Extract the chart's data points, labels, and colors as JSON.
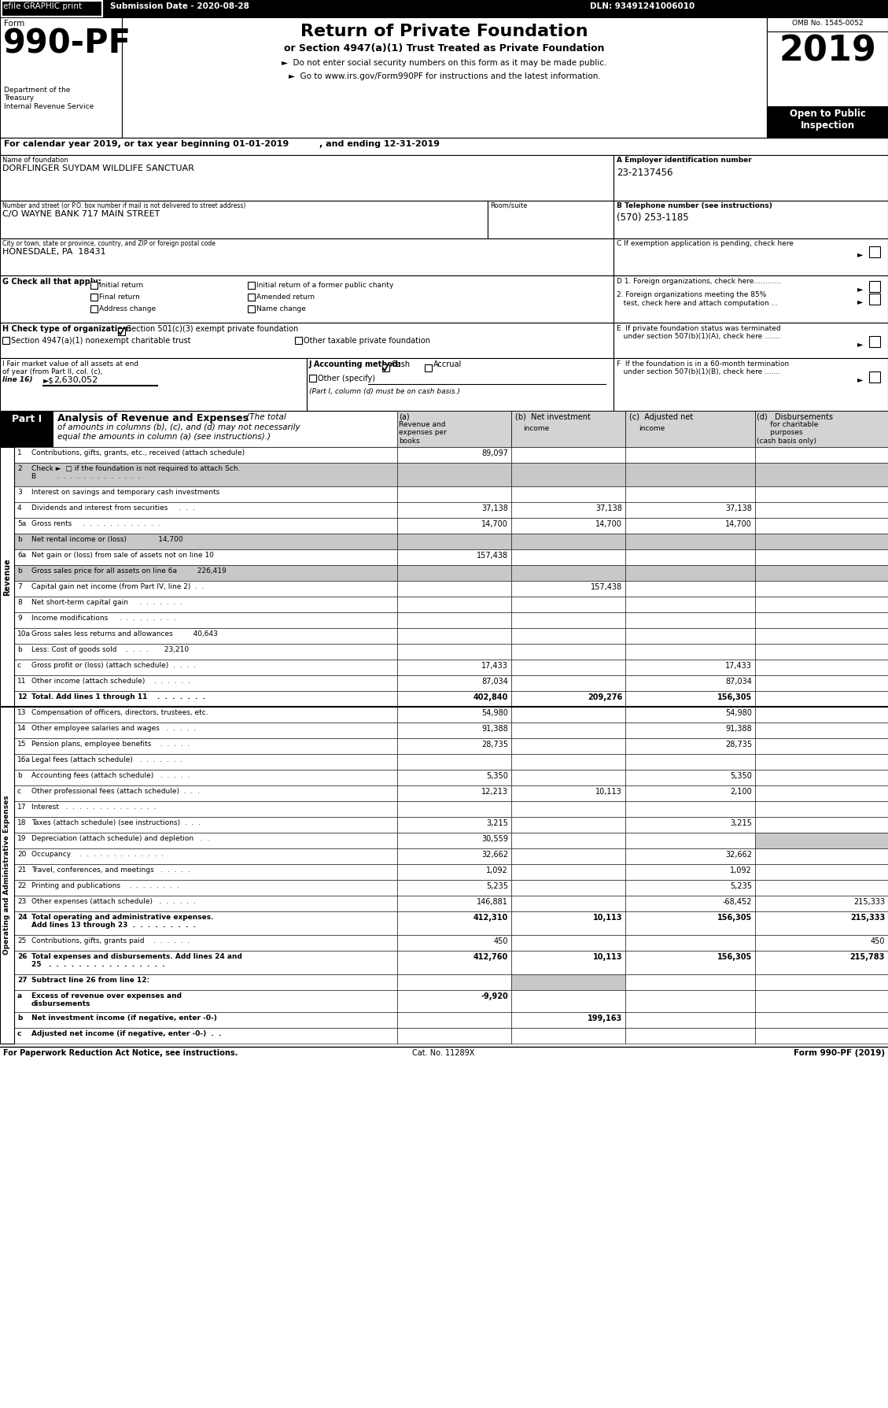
{
  "rows": [
    {
      "num": "1",
      "label": "Contributions, gifts, grants, etc., received (attach schedule)",
      "a": "89,097",
      "b": "",
      "c": "",
      "d": "",
      "shaded_b": false,
      "shaded_c": false,
      "shaded_d": false
    },
    {
      "num": "2",
      "label": "Check ►  □ if the foundation is not required to attach Sch.\nB         .  .  .  .  .  .  .  .  .  .  .  .  .",
      "a": "",
      "b": "",
      "c": "",
      "d": "",
      "shaded_b": true,
      "shaded_c": true,
      "shaded_d": true
    },
    {
      "num": "3",
      "label": "Interest on savings and temporary cash investments",
      "a": "",
      "b": "",
      "c": "",
      "d": "",
      "shaded_b": false,
      "shaded_c": false,
      "shaded_d": false
    },
    {
      "num": "4",
      "label": "Dividends and interest from securities     .  .  .",
      "a": "37,138",
      "b": "37,138",
      "c": "37,138",
      "d": "",
      "shaded_b": false,
      "shaded_c": false,
      "shaded_d": false
    },
    {
      "num": "5a",
      "label": "Gross rents     .  .  .  .  .  .  .  .  .  .  .  .",
      "a": "14,700",
      "b": "14,700",
      "c": "14,700",
      "d": "",
      "shaded_b": false,
      "shaded_c": false,
      "shaded_d": false
    },
    {
      "num": "b",
      "label": "Net rental income or (loss)              14,700",
      "a": "",
      "b": "",
      "c": "",
      "d": "",
      "shaded_b": true,
      "shaded_c": true,
      "shaded_d": true
    },
    {
      "num": "6a",
      "label": "Net gain or (loss) from sale of assets not on line 10",
      "a": "157,438",
      "b": "",
      "c": "",
      "d": "",
      "shaded_b": false,
      "shaded_c": false,
      "shaded_d": false
    },
    {
      "num": "b",
      "label": "Gross sales price for all assets on line 6a         226,419",
      "a": "",
      "b": "",
      "c": "",
      "d": "",
      "shaded_b": true,
      "shaded_c": true,
      "shaded_d": true
    },
    {
      "num": "7",
      "label": "Capital gain net income (from Part IV, line 2)  .  .",
      "a": "",
      "b": "157,438",
      "c": "",
      "d": "",
      "shaded_b": false,
      "shaded_c": false,
      "shaded_d": false
    },
    {
      "num": "8",
      "label": "Net short-term capital gain     .  .  .  .  .  .  .",
      "a": "",
      "b": "",
      "c": "",
      "d": "",
      "shaded_b": false,
      "shaded_c": false,
      "shaded_d": false
    },
    {
      "num": "9",
      "label": "Income modifications     .  .  .  .  .  .  .  .  .",
      "a": "",
      "b": "",
      "c": "",
      "d": "",
      "shaded_b": false,
      "shaded_c": false,
      "shaded_d": false
    },
    {
      "num": "10a",
      "label": "Gross sales less returns and allowances         40,643",
      "a": "",
      "b": "",
      "c": "",
      "d": "",
      "shaded_b": false,
      "shaded_c": false,
      "shaded_d": false
    },
    {
      "num": "b",
      "label": "Less: Cost of goods sold    .  .  .  .       23,210",
      "a": "",
      "b": "",
      "c": "",
      "d": "",
      "shaded_b": false,
      "shaded_c": false,
      "shaded_d": false
    },
    {
      "num": "c",
      "label": "Gross profit or (loss) (attach schedule)  .  .  .  .",
      "a": "17,433",
      "b": "",
      "c": "17,433",
      "d": "",
      "shaded_b": false,
      "shaded_c": false,
      "shaded_d": false
    },
    {
      "num": "11",
      "label": "Other income (attach schedule)    .  .  .  .  .  .",
      "a": "87,034",
      "b": "",
      "c": "87,034",
      "d": "",
      "shaded_b": false,
      "shaded_c": false,
      "shaded_d": false
    },
    {
      "num": "12",
      "label": "Total. Add lines 1 through 11    .  .  .  .  .  .  .",
      "a": "402,840",
      "b": "209,276",
      "c": "156,305",
      "d": "",
      "shaded_b": false,
      "shaded_c": false,
      "shaded_d": false,
      "bold": true
    },
    {
      "num": "13",
      "label": "Compensation of officers, directors, trustees, etc.",
      "a": "54,980",
      "b": "",
      "c": "54,980",
      "d": "",
      "shaded_b": false,
      "shaded_c": false,
      "shaded_d": false
    },
    {
      "num": "14",
      "label": "Other employee salaries and wages   .  .  .  .  .",
      "a": "91,388",
      "b": "",
      "c": "91,388",
      "d": "",
      "shaded_b": false,
      "shaded_c": false,
      "shaded_d": false
    },
    {
      "num": "15",
      "label": "Pension plans, employee benefits    .  .  .  .  .",
      "a": "28,735",
      "b": "",
      "c": "28,735",
      "d": "",
      "shaded_b": false,
      "shaded_c": false,
      "shaded_d": false
    },
    {
      "num": "16a",
      "label": "Legal fees (attach schedule)   .  .  .  .  .  .  .",
      "a": "",
      "b": "",
      "c": "",
      "d": "",
      "shaded_b": false,
      "shaded_c": false,
      "shaded_d": false
    },
    {
      "num": "b",
      "label": "Accounting fees (attach schedule)   .  .  .  .  .",
      "a": "5,350",
      "b": "",
      "c": "5,350",
      "d": "",
      "shaded_b": false,
      "shaded_c": false,
      "shaded_d": false
    },
    {
      "num": "c",
      "label": "Other professional fees (attach schedule)  .  .  .",
      "a": "12,213",
      "b": "10,113",
      "c": "2,100",
      "d": "",
      "shaded_b": false,
      "shaded_c": false,
      "shaded_d": false
    },
    {
      "num": "17",
      "label": "Interest   .  .  .  .  .  .  .  .  .  .  .  .  .  .",
      "a": "",
      "b": "",
      "c": "",
      "d": "",
      "shaded_b": false,
      "shaded_c": false,
      "shaded_d": false
    },
    {
      "num": "18",
      "label": "Taxes (attach schedule) (see instructions)  .  .  .",
      "a": "3,215",
      "b": "",
      "c": "3,215",
      "d": "",
      "shaded_b": false,
      "shaded_c": false,
      "shaded_d": false
    },
    {
      "num": "19",
      "label": "Depreciation (attach schedule) and depletion   .  .",
      "a": "30,559",
      "b": "",
      "c": "",
      "d": "",
      "shaded_b": false,
      "shaded_c": false,
      "shaded_d": true
    },
    {
      "num": "20",
      "label": "Occupancy    .  .  .  .  .  .  .  .  .  .  .  .  .",
      "a": "32,662",
      "b": "",
      "c": "32,662",
      "d": "",
      "shaded_b": false,
      "shaded_c": false,
      "shaded_d": false
    },
    {
      "num": "21",
      "label": "Travel, conferences, and meetings   .  .  .  .  .",
      "a": "1,092",
      "b": "",
      "c": "1,092",
      "d": "",
      "shaded_b": false,
      "shaded_c": false,
      "shaded_d": false
    },
    {
      "num": "22",
      "label": "Printing and publications    .  .  .  .  .  .  .  .",
      "a": "5,235",
      "b": "",
      "c": "5,235",
      "d": "",
      "shaded_b": false,
      "shaded_c": false,
      "shaded_d": false
    },
    {
      "num": "23",
      "label": "Other expenses (attach schedule)   .  .  .  .  .  .",
      "a": "146,881",
      "b": "",
      "c": "-68,452",
      "d": "215,333",
      "shaded_b": false,
      "shaded_c": false,
      "shaded_d": false
    },
    {
      "num": "24",
      "label": "Total operating and administrative expenses.\nAdd lines 13 through 23  .  .  .  .  .  .  .  .  .",
      "a": "412,310",
      "b": "10,113",
      "c": "156,305",
      "d": "215,333",
      "shaded_b": false,
      "shaded_c": false,
      "shaded_d": false,
      "bold": true
    },
    {
      "num": "25",
      "label": "Contributions, gifts, grants paid    .  .  .  .  .  .",
      "a": "450",
      "b": "",
      "c": "",
      "d": "450",
      "shaded_b": false,
      "shaded_c": false,
      "shaded_d": false
    },
    {
      "num": "26",
      "label": "Total expenses and disbursements. Add lines 24 and\n25   .  .  .  .  .  .  .  .  .  .  .  .  .  .  .  .",
      "a": "412,760",
      "b": "10,113",
      "c": "156,305",
      "d": "215,783",
      "shaded_b": false,
      "shaded_c": false,
      "shaded_d": false,
      "bold": true
    },
    {
      "num": "27",
      "label": "Subtract line 26 from line 12:",
      "a": "",
      "b": "",
      "c": "",
      "d": "",
      "shaded_b": true,
      "shaded_c": false,
      "shaded_d": false,
      "bold": true
    },
    {
      "num": "a",
      "label": "Excess of revenue over expenses and\ndisbursements",
      "a": "-9,920",
      "b": "",
      "c": "",
      "d": "",
      "shaded_b": false,
      "shaded_c": false,
      "shaded_d": false,
      "bold": true
    },
    {
      "num": "b",
      "label": "Net investment income (if negative, enter -0-)",
      "a": "",
      "b": "199,163",
      "c": "",
      "d": "",
      "shaded_b": false,
      "shaded_c": false,
      "shaded_d": false,
      "bold": true
    },
    {
      "num": "c",
      "label": "Adjusted net income (if negative, enter -0-)  .  .",
      "a": "",
      "b": "",
      "c": "",
      "d": "",
      "shaded_b": false,
      "shaded_c": false,
      "shaded_d": false,
      "bold": true
    }
  ]
}
